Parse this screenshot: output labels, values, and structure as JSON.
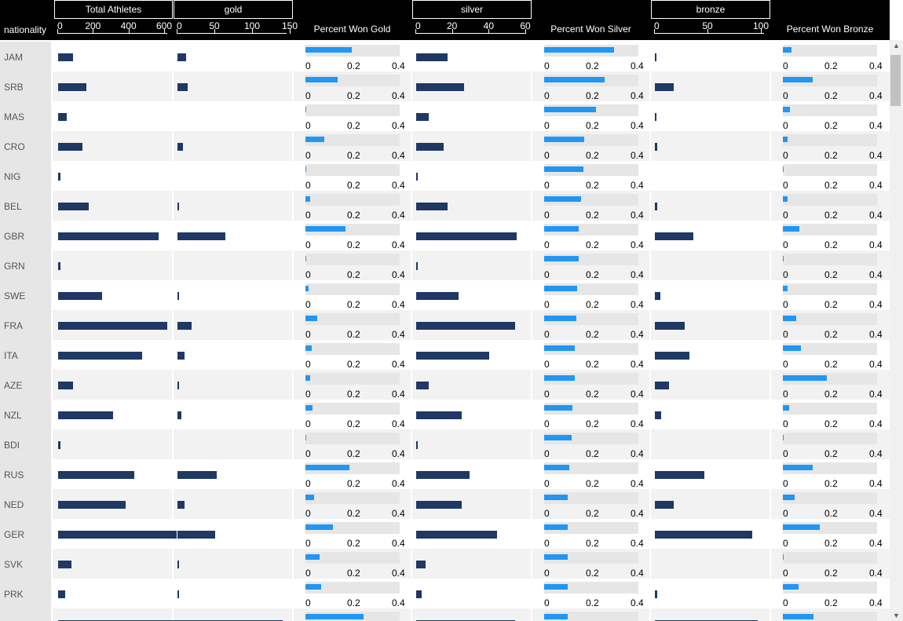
{
  "header": {
    "nationality_label": "nationality",
    "total_label": "Total Athletes",
    "total_ticks": [
      "0",
      "200",
      "400",
      "600"
    ],
    "gold_label": "gold",
    "gold_ticks": [
      "0",
      "50",
      "100",
      "150"
    ],
    "pct_gold_label": "Percent Won Gold",
    "silver_label": "silver",
    "silver_ticks": [
      "0",
      "20",
      "40",
      "60"
    ],
    "pct_silver_label": "Percent Won Silver",
    "bronze_label": "bronze",
    "bronze_ticks": [
      "0",
      "50",
      "100"
    ],
    "pct_bronze_label": "Percent Won Bronze"
  },
  "percent_axis": [
    "0",
    "0.2",
    "0.4"
  ],
  "scales": {
    "total_max": 600,
    "gold_max": 150,
    "silver_max": 60,
    "bronze_max": 100,
    "pct_max": 0.4
  },
  "colors": {
    "header_bg": "#000000",
    "bar": "#1f3864",
    "pct_fill": "#2196f3",
    "pct_bg": "#e6e6e6",
    "row_alt": "#f2f2f2"
  },
  "rows": [
    {
      "nationality": "JAM",
      "total": 85,
      "gold": 11,
      "silver": 17,
      "bronze": 1,
      "pct_gold": 0.195,
      "pct_silver": 0.295,
      "pct_bronze": 0.035
    },
    {
      "nationality": "SRB",
      "total": 160,
      "gold": 14,
      "silver": 26,
      "bronze": 18,
      "pct_gold": 0.135,
      "pct_silver": 0.255,
      "pct_bronze": 0.125
    },
    {
      "nationality": "MAS",
      "total": 50,
      "gold": 0,
      "silver": 7,
      "bronze": 1,
      "pct_gold": 0.005,
      "pct_silver": 0.22,
      "pct_bronze": 0.03
    },
    {
      "nationality": "CRO",
      "total": 135,
      "gold": 7,
      "silver": 15,
      "bronze": 2,
      "pct_gold": 0.08,
      "pct_silver": 0.17,
      "pct_bronze": 0.02
    },
    {
      "nationality": "NIG",
      "total": 15,
      "gold": 0,
      "silver": 1,
      "bronze": 0,
      "pct_gold": 0.005,
      "pct_silver": 0.165,
      "pct_bronze": 0.003
    },
    {
      "nationality": "BEL",
      "total": 170,
      "gold": 2,
      "silver": 17,
      "bronze": 2,
      "pct_gold": 0.02,
      "pct_silver": 0.155,
      "pct_bronze": 0.02
    },
    {
      "nationality": "GBR",
      "total": 565,
      "gold": 64,
      "silver": 55,
      "bronze": 36,
      "pct_gold": 0.17,
      "pct_silver": 0.145,
      "pct_bronze": 0.07
    },
    {
      "nationality": "GRN",
      "total": 15,
      "gold": 0,
      "silver": 1,
      "bronze": 0,
      "pct_gold": 0.005,
      "pct_silver": 0.145,
      "pct_bronze": 0.003
    },
    {
      "nationality": "SWE",
      "total": 245,
      "gold": 2,
      "silver": 23,
      "bronze": 5,
      "pct_gold": 0.012,
      "pct_silver": 0.14,
      "pct_bronze": 0.02
    },
    {
      "nationality": "FRA",
      "total": 615,
      "gold": 19,
      "silver": 54,
      "bronze": 28,
      "pct_gold": 0.05,
      "pct_silver": 0.135,
      "pct_bronze": 0.055
    },
    {
      "nationality": "ITA",
      "total": 470,
      "gold": 9,
      "silver": 40,
      "bronze": 32,
      "pct_gold": 0.025,
      "pct_silver": 0.13,
      "pct_bronze": 0.075
    },
    {
      "nationality": "AZE",
      "total": 85,
      "gold": 1,
      "silver": 7,
      "bronze": 13,
      "pct_gold": 0.02,
      "pct_silver": 0.13,
      "pct_bronze": 0.185
    },
    {
      "nationality": "NZL",
      "total": 310,
      "gold": 5,
      "silver": 25,
      "bronze": 6,
      "pct_gold": 0.03,
      "pct_silver": 0.12,
      "pct_bronze": 0.025
    },
    {
      "nationality": "BDI",
      "total": 15,
      "gold": 0,
      "silver": 1,
      "bronze": 0,
      "pct_gold": 0.005,
      "pct_silver": 0.115,
      "pct_bronze": 0.003
    },
    {
      "nationality": "RUS",
      "total": 430,
      "gold": 52,
      "silver": 29,
      "bronze": 46,
      "pct_gold": 0.185,
      "pct_silver": 0.105,
      "pct_bronze": 0.125
    },
    {
      "nationality": "NED",
      "total": 380,
      "gold": 9,
      "silver": 25,
      "bronze": 18,
      "pct_gold": 0.035,
      "pct_silver": 0.1,
      "pct_bronze": 0.05
    },
    {
      "nationality": "GER",
      "total": 665,
      "gold": 50,
      "silver": 44,
      "bronze": 91,
      "pct_gold": 0.115,
      "pct_silver": 0.1,
      "pct_bronze": 0.155
    },
    {
      "nationality": "SVK",
      "total": 75,
      "gold": 2,
      "silver": 5,
      "bronze": 0,
      "pct_gold": 0.06,
      "pct_silver": 0.1,
      "pct_bronze": 0.003
    },
    {
      "nationality": "PRK",
      "total": 40,
      "gold": 1,
      "silver": 3,
      "bronze": 2,
      "pct_gold": 0.065,
      "pct_silver": 0.1,
      "pct_bronze": 0.065
    },
    {
      "nationality": "",
      "total": 850,
      "gold": 140,
      "silver": 54,
      "bronze": 96,
      "pct_gold": 0.245,
      "pct_silver": 0.1,
      "pct_bronze": 0.13
    }
  ]
}
